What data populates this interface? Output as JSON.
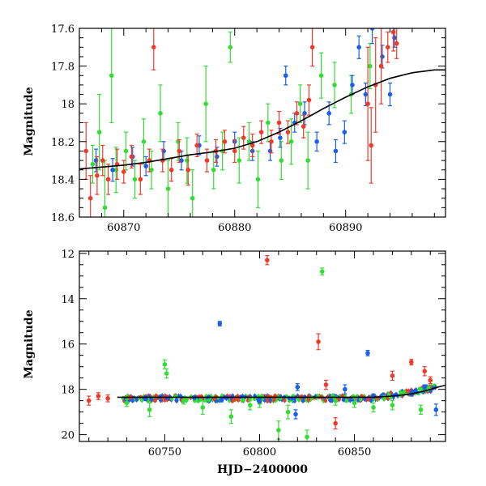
{
  "chart_data": [
    {
      "type": "scatter",
      "title": "",
      "xlabel": "",
      "ylabel": "Magnitude",
      "xlim": [
        60866,
        60899
      ],
      "ylim": [
        18.6,
        17.6
      ],
      "y_inverted": true,
      "xticks": [
        60870,
        60880,
        60890
      ],
      "xtick_labels": [
        "60870",
        "60880",
        "60890"
      ],
      "yticks": [
        17.6,
        17.8,
        18,
        18.2,
        18.4,
        18.6
      ],
      "ytick_labels": [
        "17.6",
        "17.8",
        "18",
        "18.2",
        "18.4",
        "18.6"
      ],
      "grid": false,
      "series": [
        {
          "color": "#33dd33",
          "points": [
            {
              "x": 60867.2,
              "y": 18.32,
              "err": 0.1
            },
            {
              "x": 60867.8,
              "y": 18.15,
              "err": 0.2
            },
            {
              "x": 60868.3,
              "y": 18.55,
              "err": 0.25
            },
            {
              "x": 60868.9,
              "y": 17.85,
              "err": 0.25
            },
            {
              "x": 60869.3,
              "y": 18.35,
              "err": 0.12
            },
            {
              "x": 60870.2,
              "y": 18.25,
              "err": 0.1
            },
            {
              "x": 60871.0,
              "y": 18.4,
              "err": 0.1
            },
            {
              "x": 60871.8,
              "y": 18.2,
              "err": 0.12
            },
            {
              "x": 60872.5,
              "y": 18.35,
              "err": 0.1
            },
            {
              "x": 60873.3,
              "y": 18.05,
              "err": 0.15
            },
            {
              "x": 60874.0,
              "y": 18.45,
              "err": 0.15
            },
            {
              "x": 60874.9,
              "y": 18.2,
              "err": 0.1
            },
            {
              "x": 60875.7,
              "y": 18.3,
              "err": 0.12
            },
            {
              "x": 60876.2,
              "y": 18.5,
              "err": 0.15
            },
            {
              "x": 60877.4,
              "y": 18.0,
              "err": 0.2
            },
            {
              "x": 60878.1,
              "y": 18.35,
              "err": 0.1
            },
            {
              "x": 60878.9,
              "y": 18.25,
              "err": 0.1
            },
            {
              "x": 60879.6,
              "y": 17.7,
              "err": 0.08
            },
            {
              "x": 60880.4,
              "y": 18.3,
              "err": 0.12
            },
            {
              "x": 60881.3,
              "y": 18.2,
              "err": 0.1
            },
            {
              "x": 60882.1,
              "y": 18.4,
              "err": 0.15
            },
            {
              "x": 60883.0,
              "y": 18.1,
              "err": 0.1
            },
            {
              "x": 60884.2,
              "y": 18.3,
              "err": 0.1
            },
            {
              "x": 60885.1,
              "y": 18.2,
              "err": 0.12
            },
            {
              "x": 60885.9,
              "y": 18.0,
              "err": 0.1
            },
            {
              "x": 60886.6,
              "y": 18.3,
              "err": 0.15
            },
            {
              "x": 60887.8,
              "y": 17.85,
              "err": 0.12
            },
            {
              "x": 60889.0,
              "y": 17.9,
              "err": 0.12
            },
            {
              "x": 60890.5,
              "y": 17.95,
              "err": 0.1
            },
            {
              "x": 60892.2,
              "y": 17.8,
              "err": 0.12
            }
          ]
        },
        {
          "color": "#1a5fe6",
          "points": [
            {
              "x": 60867.5,
              "y": 18.3,
              "err": 0.06
            },
            {
              "x": 60869.0,
              "y": 18.35,
              "err": 0.06
            },
            {
              "x": 60870.8,
              "y": 18.28,
              "err": 0.05
            },
            {
              "x": 60872.0,
              "y": 18.33,
              "err": 0.05
            },
            {
              "x": 60873.6,
              "y": 18.25,
              "err": 0.05
            },
            {
              "x": 60875.2,
              "y": 18.3,
              "err": 0.05
            },
            {
              "x": 60876.8,
              "y": 18.22,
              "err": 0.05
            },
            {
              "x": 60878.4,
              "y": 18.28,
              "err": 0.05
            },
            {
              "x": 60880.0,
              "y": 18.2,
              "err": 0.05
            },
            {
              "x": 60881.6,
              "y": 18.25,
              "err": 0.05
            },
            {
              "x": 60883.2,
              "y": 18.25,
              "err": 0.05
            },
            {
              "x": 60884.1,
              "y": 18.18,
              "err": 0.05
            },
            {
              "x": 60884.6,
              "y": 17.85,
              "err": 0.05
            },
            {
              "x": 60885.4,
              "y": 18.1,
              "err": 0.05
            },
            {
              "x": 60886.3,
              "y": 18.05,
              "err": 0.06
            },
            {
              "x": 60887.4,
              "y": 18.2,
              "err": 0.05
            },
            {
              "x": 60888.5,
              "y": 18.05,
              "err": 0.06
            },
            {
              "x": 60889.1,
              "y": 18.25,
              "err": 0.06
            },
            {
              "x": 60889.9,
              "y": 18.15,
              "err": 0.06
            },
            {
              "x": 60890.6,
              "y": 17.9,
              "err": 0.05
            },
            {
              "x": 60891.2,
              "y": 17.7,
              "err": 0.06
            },
            {
              "x": 60891.8,
              "y": 17.95,
              "err": 0.06
            },
            {
              "x": 60892.4,
              "y": 17.6,
              "err": 0.08
            },
            {
              "x": 60893.3,
              "y": 17.75,
              "err": 0.06
            },
            {
              "x": 60894.0,
              "y": 17.95,
              "err": 0.06
            },
            {
              "x": 60894.4,
              "y": 17.65,
              "err": 0.05
            }
          ]
        },
        {
          "color": "#ee3a2a",
          "points": [
            {
              "x": 60866.6,
              "y": 18.25,
              "err": 0.15
            },
            {
              "x": 60867.0,
              "y": 18.5,
              "err": 0.12
            },
            {
              "x": 60867.6,
              "y": 18.38,
              "err": 0.1
            },
            {
              "x": 60868.1,
              "y": 18.3,
              "err": 0.08
            },
            {
              "x": 60868.6,
              "y": 18.4,
              "err": 0.08
            },
            {
              "x": 60869.4,
              "y": 18.32,
              "err": 0.08
            },
            {
              "x": 60870.0,
              "y": 18.36,
              "err": 0.06
            },
            {
              "x": 60870.7,
              "y": 18.28,
              "err": 0.06
            },
            {
              "x": 60871.5,
              "y": 18.4,
              "err": 0.08
            },
            {
              "x": 60872.3,
              "y": 18.3,
              "err": 0.06
            },
            {
              "x": 60872.7,
              "y": 17.7,
              "err": 0.12
            },
            {
              "x": 60873.5,
              "y": 18.3,
              "err": 0.06
            },
            {
              "x": 60874.3,
              "y": 18.35,
              "err": 0.06
            },
            {
              "x": 60875.0,
              "y": 18.25,
              "err": 0.06
            },
            {
              "x": 60875.8,
              "y": 18.35,
              "err": 0.08
            },
            {
              "x": 60876.6,
              "y": 18.22,
              "err": 0.06
            },
            {
              "x": 60877.5,
              "y": 18.3,
              "err": 0.06
            },
            {
              "x": 60878.3,
              "y": 18.25,
              "err": 0.06
            },
            {
              "x": 60879.1,
              "y": 18.2,
              "err": 0.06
            },
            {
              "x": 60880.0,
              "y": 18.25,
              "err": 0.06
            },
            {
              "x": 60880.8,
              "y": 18.18,
              "err": 0.06
            },
            {
              "x": 60881.6,
              "y": 18.22,
              "err": 0.06
            },
            {
              "x": 60882.4,
              "y": 18.15,
              "err": 0.06
            },
            {
              "x": 60883.3,
              "y": 18.2,
              "err": 0.06
            },
            {
              "x": 60884.0,
              "y": 18.1,
              "err": 0.06
            },
            {
              "x": 60884.8,
              "y": 18.15,
              "err": 0.06
            },
            {
              "x": 60885.6,
              "y": 18.05,
              "err": 0.06
            },
            {
              "x": 60886.2,
              "y": 18.12,
              "err": 0.06
            },
            {
              "x": 60886.7,
              "y": 17.98,
              "err": 0.08
            },
            {
              "x": 60887.0,
              "y": 17.7,
              "err": 0.1
            },
            {
              "x": 60892.0,
              "y": 18.0,
              "err": 0.3
            },
            {
              "x": 60892.3,
              "y": 18.22,
              "err": 0.2
            },
            {
              "x": 60892.7,
              "y": 17.9,
              "err": 0.25
            },
            {
              "x": 60893.2,
              "y": 17.8,
              "err": 0.2
            },
            {
              "x": 60893.8,
              "y": 17.7,
              "err": 0.08
            },
            {
              "x": 60894.3,
              "y": 17.62,
              "err": 0.1
            },
            {
              "x": 60894.6,
              "y": 17.68,
              "err": 0.08
            }
          ]
        }
      ],
      "model_curve": {
        "color": "#000000",
        "points": [
          [
            60866,
            18.345
          ],
          [
            60868,
            18.335
          ],
          [
            60870,
            18.325
          ],
          [
            60872,
            18.31
          ],
          [
            60874,
            18.29
          ],
          [
            60876,
            18.27
          ],
          [
            60878,
            18.255
          ],
          [
            60880,
            18.235
          ],
          [
            60882,
            18.2
          ],
          [
            60884,
            18.15
          ],
          [
            60886,
            18.09
          ],
          [
            60888,
            18.025
          ],
          [
            60890,
            17.965
          ],
          [
            60892,
            17.91
          ],
          [
            60894,
            17.865
          ],
          [
            60896,
            17.835
          ],
          [
            60898,
            17.82
          ],
          [
            60899,
            17.82
          ]
        ]
      }
    },
    {
      "type": "scatter",
      "title": "",
      "xlabel": "HJD−2400000",
      "ylabel": "Magnitude",
      "xlim": [
        60705,
        60898
      ],
      "ylim": [
        20.3,
        11.9
      ],
      "y_inverted": true,
      "xticks": [
        60750,
        60800,
        60850
      ],
      "xtick_labels": [
        "60750",
        "60800",
        "60850"
      ],
      "yticks": [
        12,
        14,
        16,
        18,
        20
      ],
      "ytick_labels": [
        "12",
        "14",
        "16",
        "18",
        "20"
      ],
      "grid": false,
      "series": [
        {
          "color": "#33dd33",
          "points": [
            {
              "x": 60750,
              "y": 16.9,
              "err": 0.2
            },
            {
              "x": 60751,
              "y": 17.3,
              "err": 0.2
            },
            {
              "x": 60833,
              "y": 12.8,
              "err": 0.15
            },
            {
              "x": 60810,
              "y": 19.8,
              "err": 0.4
            },
            {
              "x": 60825,
              "y": 20.1,
              "err": 0.3
            },
            {
              "x": 60742,
              "y": 18.9,
              "err": 0.3
            },
            {
              "x": 60770,
              "y": 18.8,
              "err": 0.3
            },
            {
              "x": 60785,
              "y": 19.2,
              "err": 0.3
            },
            {
              "x": 60795,
              "y": 18.7,
              "err": 0.2
            },
            {
              "x": 60815,
              "y": 19.0,
              "err": 0.3
            },
            {
              "x": 60840,
              "y": 18.5,
              "err": 0.2
            },
            {
              "x": 60860,
              "y": 18.8,
              "err": 0.2
            },
            {
              "x": 60870,
              "y": 18.7,
              "err": 0.2
            },
            {
              "x": 60885,
              "y": 18.9,
              "err": 0.2
            },
            {
              "x": 60730,
              "y": 18.6,
              "err": 0.15
            },
            {
              "x": 60760,
              "y": 18.5,
              "err": 0.15
            },
            {
              "x": 60800,
              "y": 18.6,
              "err": 0.2
            },
            {
              "x": 60850,
              "y": 18.6,
              "err": 0.2
            }
          ]
        },
        {
          "color": "#1a5fe6",
          "points": [
            {
              "x": 60779,
              "y": 15.1,
              "err": 0.1
            },
            {
              "x": 60857,
              "y": 16.4,
              "err": 0.12
            },
            {
              "x": 60893,
              "y": 18.9,
              "err": 0.25
            },
            {
              "x": 60845,
              "y": 18.0,
              "err": 0.2
            },
            {
              "x": 60820,
              "y": 17.9,
              "err": 0.15
            },
            {
              "x": 60740,
              "y": 18.4,
              "err": 0.1
            },
            {
              "x": 60780,
              "y": 18.45,
              "err": 0.1
            },
            {
              "x": 60800,
              "y": 18.5,
              "err": 0.1
            },
            {
              "x": 60860,
              "y": 18.3,
              "err": 0.1
            },
            {
              "x": 60880,
              "y": 18.2,
              "err": 0.1
            },
            {
              "x": 60887,
              "y": 17.9,
              "err": 0.1
            },
            {
              "x": 60819,
              "y": 19.1,
              "err": 0.2
            }
          ]
        },
        {
          "color": "#ee3a2a",
          "points": [
            {
              "x": 60804,
              "y": 12.3,
              "err": 0.2
            },
            {
              "x": 60831,
              "y": 15.9,
              "err": 0.35
            },
            {
              "x": 60880,
              "y": 16.8,
              "err": 0.12
            },
            {
              "x": 60887,
              "y": 17.2,
              "err": 0.2
            },
            {
              "x": 60870,
              "y": 17.4,
              "err": 0.2
            },
            {
              "x": 60710,
              "y": 18.5,
              "err": 0.2
            },
            {
              "x": 60715,
              "y": 18.3,
              "err": 0.15
            },
            {
              "x": 60720,
              "y": 18.4,
              "err": 0.15
            },
            {
              "x": 60840,
              "y": 19.5,
              "err": 0.25
            },
            {
              "x": 60835,
              "y": 17.8,
              "err": 0.2
            },
            {
              "x": 60890,
              "y": 17.6,
              "err": 0.15
            }
          ]
        }
      ],
      "dense_band": {
        "x_range": [
          60728,
          60894
        ],
        "y_center": 18.4,
        "y_scatter": 0.12,
        "colors": [
          "#ee3a2a",
          "#1a5fe6",
          "#33dd33"
        ]
      },
      "model_curve": {
        "color": "#000000",
        "points": [
          [
            60725,
            18.35
          ],
          [
            60780,
            18.35
          ],
          [
            60820,
            18.35
          ],
          [
            60860,
            18.35
          ],
          [
            60870,
            18.3
          ],
          [
            60880,
            18.2
          ],
          [
            60888,
            18.05
          ],
          [
            60894,
            17.9
          ],
          [
            60898,
            17.82
          ]
        ]
      }
    }
  ]
}
